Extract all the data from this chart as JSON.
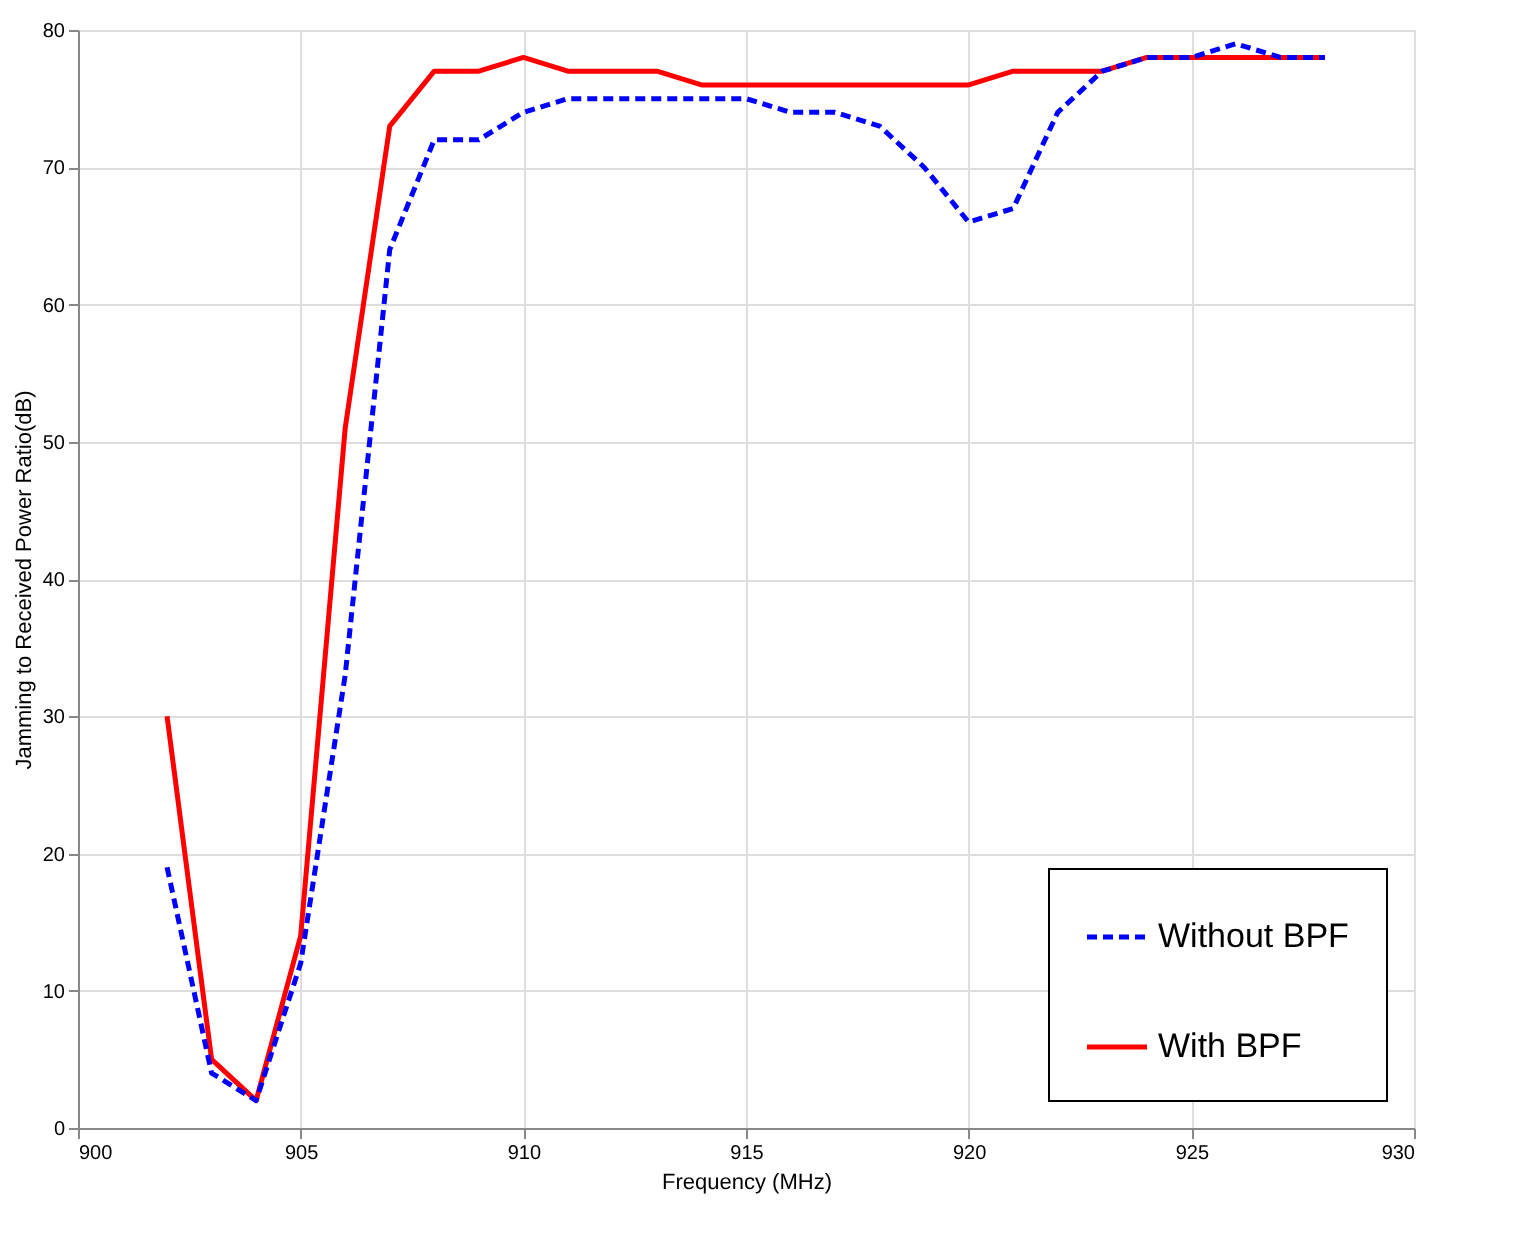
{
  "chart_data": {
    "type": "line",
    "xlabel": "Frequency (MHz)",
    "ylabel": "Jamming to Received Power Ratio(dB)",
    "x": [
      902,
      903,
      904,
      905,
      906,
      907,
      908,
      909,
      910,
      911,
      912,
      913,
      914,
      915,
      916,
      917,
      918,
      919,
      920,
      921,
      922,
      923,
      924,
      925,
      926,
      927,
      928
    ],
    "series": [
      {
        "name": "Without BPF",
        "color": "#0000ff",
        "line_style": "dashed",
        "values": [
          19,
          4,
          2,
          12,
          33,
          64,
          72,
          72,
          74,
          75,
          75,
          75,
          75,
          75,
          74,
          74,
          73,
          70,
          66,
          67,
          74,
          77,
          78,
          78,
          79,
          78,
          78
        ]
      },
      {
        "name": "With BPF",
        "color": "#ff0000",
        "line_style": "solid",
        "values": [
          30,
          5,
          2,
          14,
          51,
          73,
          77,
          77,
          78,
          77,
          77,
          77,
          76,
          76,
          76,
          76,
          76,
          76,
          76,
          77,
          77,
          77,
          78,
          78,
          78,
          78,
          78
        ]
      }
    ],
    "xlim": [
      900,
      930
    ],
    "xticks": [
      900,
      905,
      910,
      915,
      920,
      925,
      930
    ],
    "ylim": [
      0,
      80
    ],
    "yticks": [
      0,
      10,
      20,
      30,
      40,
      50,
      60,
      70,
      80
    ],
    "grid": true,
    "legend": "bottom right",
    "marker": "none"
  }
}
